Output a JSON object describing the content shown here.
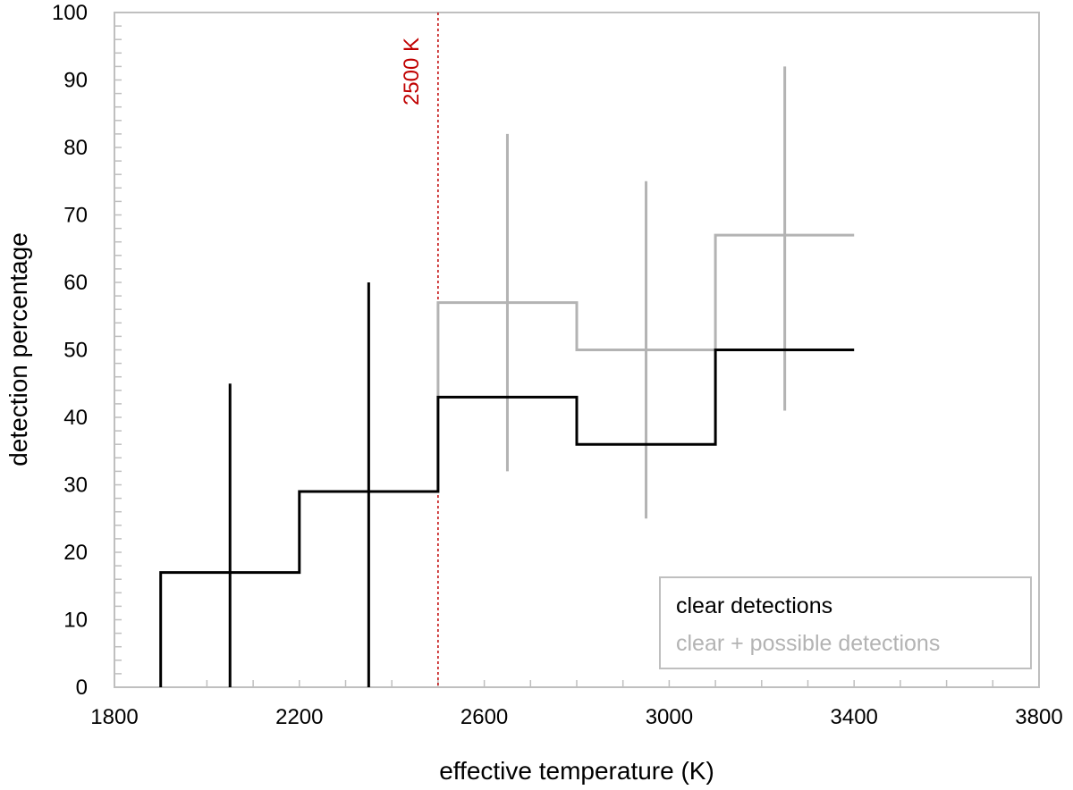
{
  "chart_data": {
    "type": "line",
    "xlabel": "effective temperature  (K)",
    "ylabel": "detection percentage",
    "xlim": [
      1800,
      3800
    ],
    "ylim": [
      0,
      100
    ],
    "x_ticks": [
      1800,
      2200,
      2600,
      3000,
      3400,
      3800
    ],
    "y_ticks": [
      0,
      10,
      20,
      30,
      40,
      50,
      60,
      70,
      80,
      90,
      100
    ],
    "x_minor_step": 100,
    "y_minor_step": 2,
    "grid": false,
    "legend_position": "bottom-right",
    "series": [
      {
        "name": "clear detections",
        "color": "#000000",
        "bins": [
          {
            "x0": 1900,
            "x1": 2200,
            "value": 17,
            "err_x": 2050,
            "err_low": 0,
            "err_high": 45
          },
          {
            "x0": 2200,
            "x1": 2500,
            "value": 29,
            "err_x": 2350,
            "err_low": 0,
            "err_high": 60
          },
          {
            "x0": 2500,
            "x1": 2800,
            "value": 43
          },
          {
            "x0": 2800,
            "x1": 3100,
            "value": 36
          },
          {
            "x0": 3100,
            "x1": 3400,
            "value": 50
          }
        ]
      },
      {
        "name": "clear + possible detections",
        "color": "#b3b3b3",
        "bins": [
          {
            "x0": 2500,
            "x1": 2800,
            "value": 57,
            "err_x": 2650,
            "err_low": 32,
            "err_high": 82
          },
          {
            "x0": 2800,
            "x1": 3100,
            "value": 50,
            "err_x": 2950,
            "err_low": 25,
            "err_high": 75
          },
          {
            "x0": 3100,
            "x1": 3400,
            "value": 67,
            "err_x": 3250,
            "err_low": 41,
            "err_high": 92
          }
        ]
      }
    ],
    "reference_line": {
      "x": 2500,
      "label": "2500 K",
      "color": "#c00000"
    }
  }
}
